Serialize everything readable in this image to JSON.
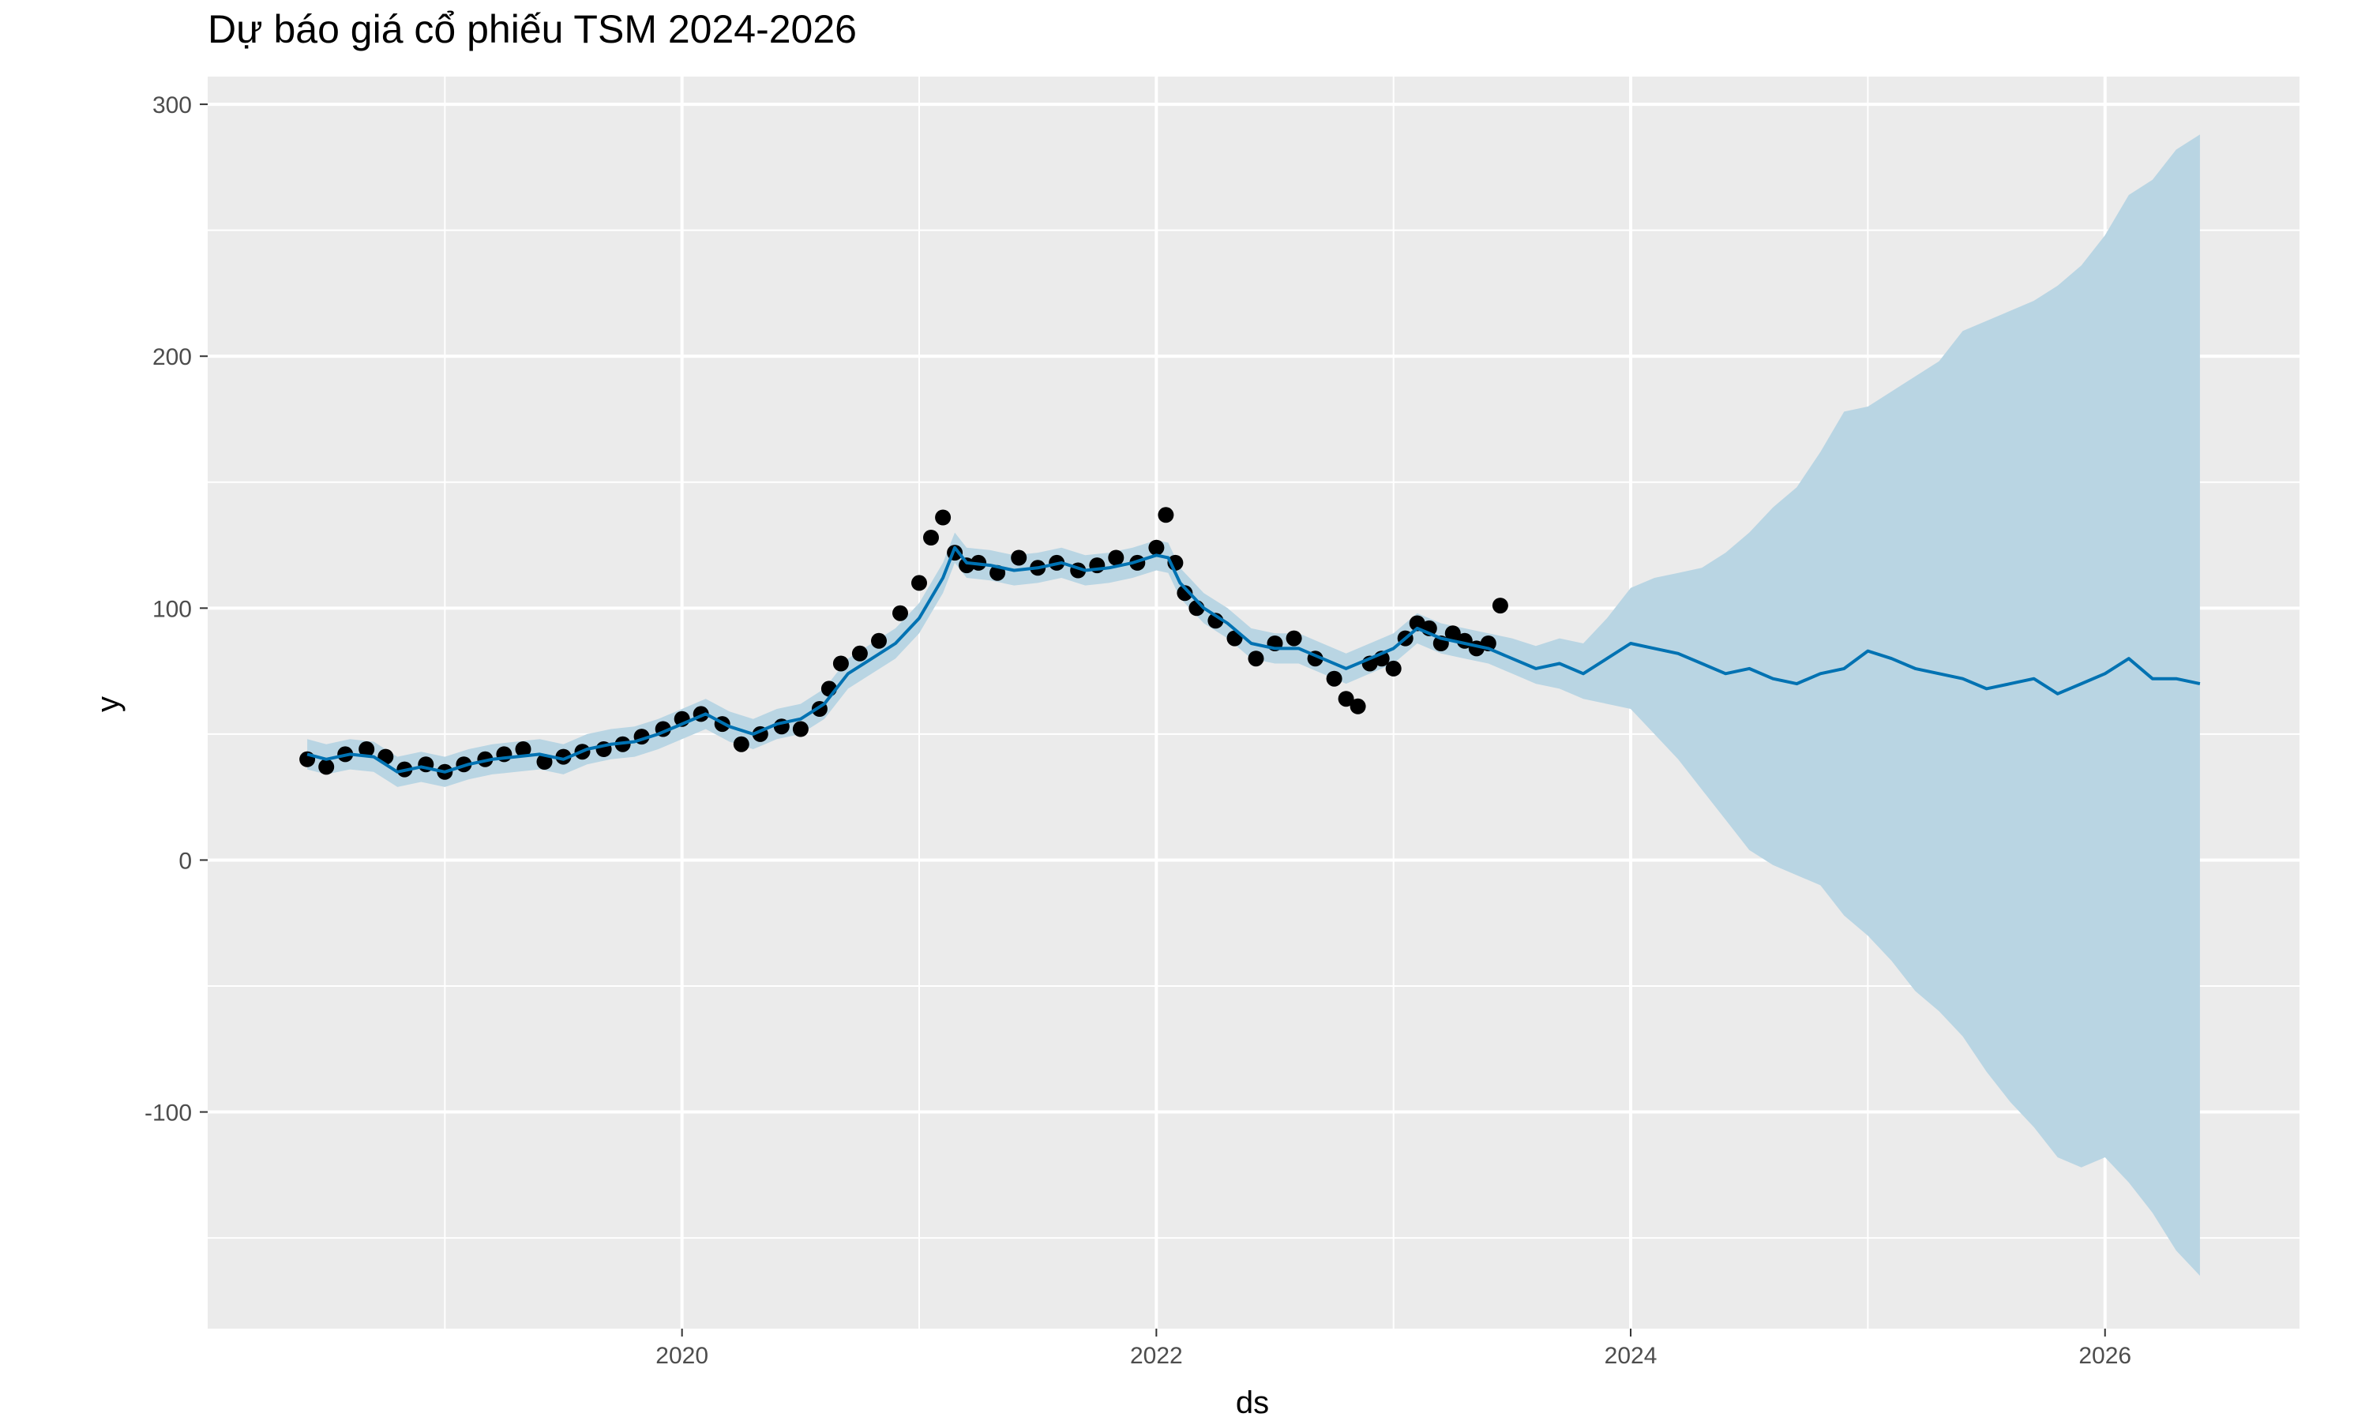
{
  "chart_data": {
    "type": "line",
    "title": "Dự báo giá cổ phiếu TSM 2024-2026",
    "xlabel": "ds",
    "ylabel": "y",
    "x_ticks": [
      "2020",
      "2022",
      "2024",
      "2026"
    ],
    "y_ticks": [
      "300",
      "200",
      "100",
      "0",
      "-100"
    ],
    "xlim": [
      2018.0,
      2026.82
    ],
    "ylim": [
      -186,
      311
    ],
    "grid": true,
    "legend": "none",
    "colors": {
      "panel": "#ebebeb",
      "gridline": "#ffffff",
      "forecast_line": "#0072b2",
      "uncertainty_band": "#b9d5e3",
      "observed_points": "#000000"
    },
    "observed": {
      "x": [
        2018.42,
        2018.5,
        2018.58,
        2018.67,
        2018.75,
        2018.83,
        2018.92,
        2019.0,
        2019.08,
        2019.17,
        2019.25,
        2019.33,
        2019.42,
        2019.5,
        2019.58,
        2019.67,
        2019.75,
        2019.83,
        2019.92,
        2020.0,
        2020.08,
        2020.17,
        2020.25,
        2020.33,
        2020.42,
        2020.5,
        2020.58,
        2020.62,
        2020.67,
        2020.75,
        2020.83,
        2020.92,
        2021.0,
        2021.05,
        2021.1,
        2021.15,
        2021.2,
        2021.25,
        2021.33,
        2021.42,
        2021.5,
        2021.58,
        2021.67,
        2021.75,
        2021.83,
        2021.92,
        2022.0,
        2022.04,
        2022.08,
        2022.12,
        2022.17,
        2022.25,
        2022.33,
        2022.42,
        2022.5,
        2022.58,
        2022.67,
        2022.75,
        2022.8,
        2022.85,
        2022.9,
        2022.95,
        2023.0,
        2023.05,
        2023.1,
        2023.15,
        2023.2,
        2023.25,
        2023.3,
        2023.35,
        2023.4,
        2023.45
      ],
      "y": [
        40,
        37,
        42,
        44,
        41,
        36,
        38,
        35,
        38,
        40,
        42,
        44,
        39,
        41,
        43,
        44,
        46,
        49,
        52,
        56,
        58,
        54,
        46,
        50,
        53,
        52,
        60,
        68,
        78,
        82,
        87,
        98,
        110,
        128,
        136,
        122,
        117,
        118,
        114,
        120,
        116,
        118,
        115,
        117,
        120,
        118,
        124,
        137,
        118,
        106,
        100,
        95,
        88,
        80,
        86,
        88,
        80,
        72,
        64,
        61,
        78,
        80,
        76,
        88,
        94,
        92,
        86,
        90,
        87,
        84,
        86,
        101
      ]
    },
    "forecast": {
      "x": [
        2018.42,
        2018.5,
        2018.6,
        2018.7,
        2018.8,
        2018.9,
        2019.0,
        2019.1,
        2019.2,
        2019.3,
        2019.4,
        2019.5,
        2019.6,
        2019.7,
        2019.8,
        2019.9,
        2020.0,
        2020.1,
        2020.2,
        2020.3,
        2020.4,
        2020.5,
        2020.6,
        2020.7,
        2020.8,
        2020.9,
        2021.0,
        2021.1,
        2021.15,
        2021.2,
        2021.3,
        2021.4,
        2021.5,
        2021.6,
        2021.7,
        2021.8,
        2021.9,
        2022.0,
        2022.05,
        2022.1,
        2022.2,
        2022.3,
        2022.4,
        2022.5,
        2022.6,
        2022.7,
        2022.8,
        2022.9,
        2023.0,
        2023.1,
        2023.2,
        2023.3,
        2023.4,
        2023.5,
        2023.6,
        2023.7,
        2023.8,
        2023.9,
        2024.0,
        2024.1,
        2024.2,
        2024.3,
        2024.4,
        2024.5,
        2024.6,
        2024.7,
        2024.8,
        2024.9,
        2025.0,
        2025.1,
        2025.2,
        2025.3,
        2025.4,
        2025.5,
        2025.6,
        2025.7,
        2025.8,
        2025.9,
        2026.0,
        2026.1,
        2026.2,
        2026.3,
        2026.4
      ],
      "y": [
        42,
        40,
        42,
        41,
        35,
        37,
        35,
        38,
        40,
        41,
        42,
        40,
        44,
        46,
        47,
        50,
        54,
        58,
        53,
        50,
        54,
        56,
        62,
        74,
        80,
        86,
        96,
        112,
        124,
        118,
        117,
        115,
        116,
        118,
        115,
        116,
        118,
        121,
        120,
        110,
        100,
        94,
        86,
        84,
        84,
        80,
        76,
        80,
        84,
        92,
        88,
        86,
        84,
        80,
        76,
        78,
        74,
        80,
        86,
        84,
        82,
        78,
        74,
        76,
        72,
        70,
        74,
        76,
        83,
        80,
        76,
        74,
        72,
        68,
        70,
        72,
        66,
        70,
        74,
        80,
        72,
        72,
        70
      ],
      "upper": [
        48,
        46,
        48,
        47,
        41,
        43,
        41,
        44,
        46,
        47,
        48,
        46,
        50,
        52,
        53,
        56,
        60,
        64,
        59,
        56,
        60,
        62,
        68,
        80,
        86,
        92,
        102,
        118,
        130,
        124,
        123,
        121,
        122,
        124,
        121,
        122,
        124,
        127,
        126,
        116,
        106,
        100,
        92,
        90,
        90,
        86,
        82,
        86,
        90,
        98,
        94,
        92,
        90,
        88,
        85,
        88,
        86,
        96,
        108,
        112,
        114,
        116,
        122,
        130,
        140,
        148,
        162,
        178,
        180,
        186,
        192,
        198,
        210,
        214,
        218,
        222,
        228,
        236,
        248,
        264,
        270,
        282,
        288
      ],
      "lower": [
        36,
        34,
        36,
        35,
        29,
        31,
        29,
        32,
        34,
        35,
        36,
        34,
        38,
        40,
        41,
        44,
        48,
        52,
        47,
        44,
        48,
        50,
        56,
        68,
        74,
        80,
        90,
        106,
        118,
        112,
        111,
        109,
        110,
        112,
        109,
        110,
        112,
        115,
        114,
        104,
        94,
        88,
        80,
        78,
        78,
        74,
        70,
        74,
        78,
        86,
        82,
        80,
        78,
        74,
        70,
        68,
        64,
        62,
        60,
        50,
        40,
        28,
        16,
        4,
        -2,
        -6,
        -10,
        -22,
        -30,
        -40,
        -52,
        -60,
        -70,
        -84,
        -96,
        -106,
        -118,
        -122,
        -118,
        -128,
        -140,
        -155,
        -165
      ]
    }
  }
}
